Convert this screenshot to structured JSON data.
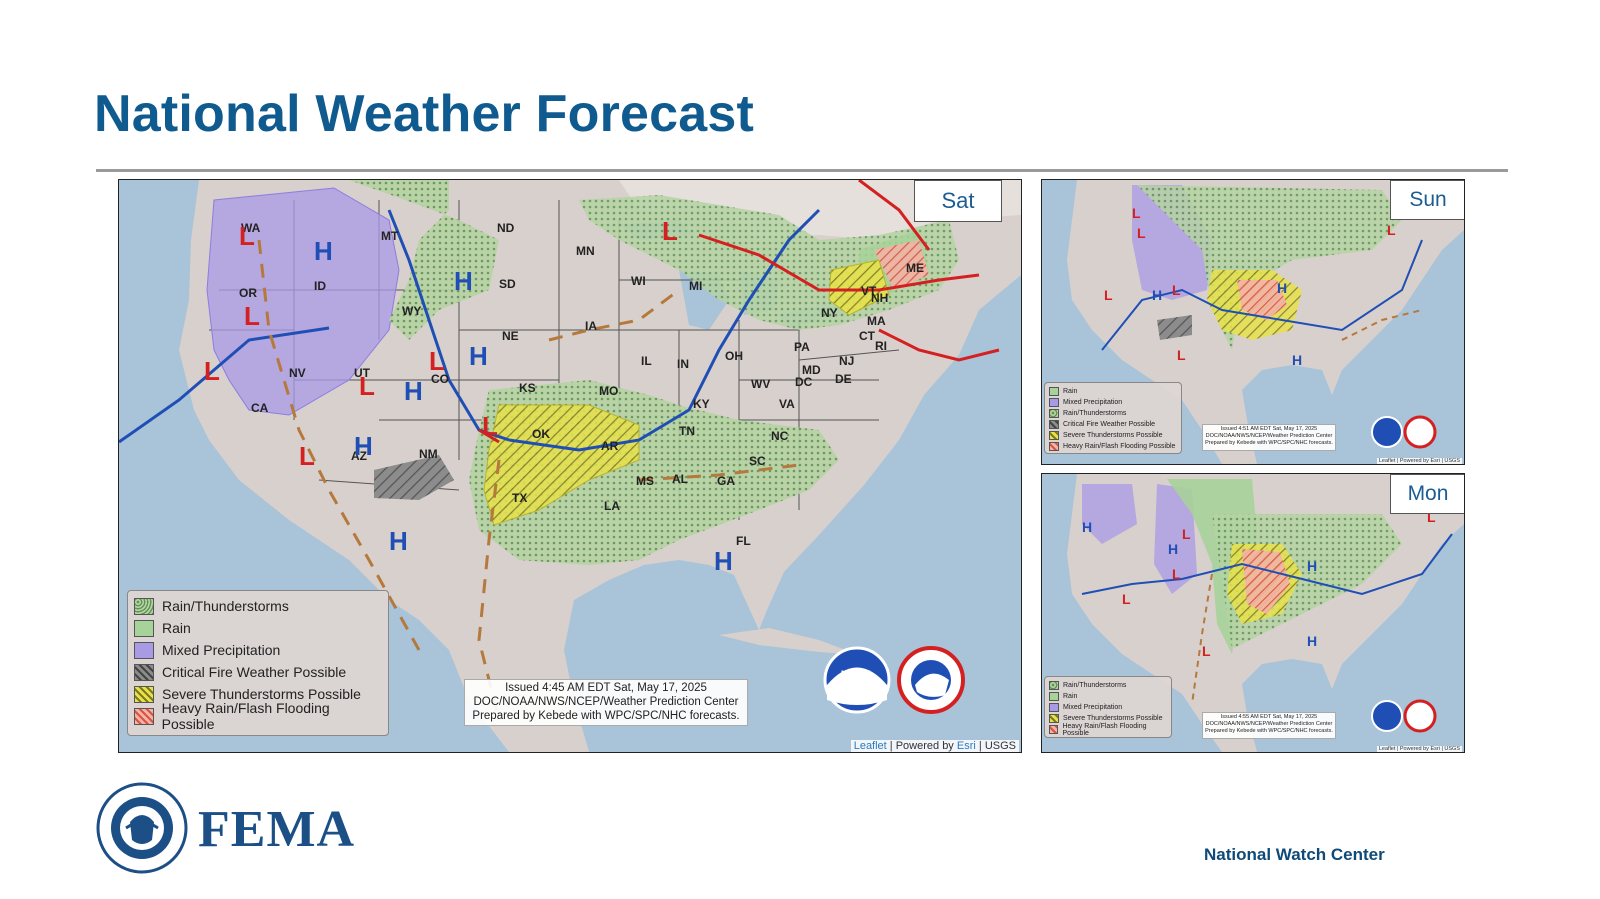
{
  "page": {
    "title": "National Weather Forecast",
    "footer": "National Watch Center",
    "logo_text": "FEMA"
  },
  "seal_text": "U.S. DEPARTMENT OF HOMELAND SECURITY",
  "colors": {
    "title": "#0f5a8e",
    "rain_thunder": "#9fc38a",
    "rain": "#a7d29a",
    "mixed": "#a99ae6",
    "fire": "#7a7a7a",
    "severe": "#e8e24a",
    "flood": "#d9533f",
    "high": "#1f4fb5",
    "low": "#d42020"
  },
  "main_map": {
    "day": "Sat",
    "legend": [
      {
        "label": "Rain/Thunderstorms",
        "key": "rain_thunder"
      },
      {
        "label": "Rain",
        "key": "rain"
      },
      {
        "label": "Mixed Precipitation",
        "key": "mixed"
      },
      {
        "label": "Critical Fire Weather Possible",
        "key": "fire"
      },
      {
        "label": "Severe Thunderstorms Possible",
        "key": "severe"
      },
      {
        "label": "Heavy Rain/Flash Flooding Possible",
        "key": "flood"
      }
    ],
    "issued": [
      "Issued  4:45 AM EDT  Sat, May 17, 2025",
      "DOC/NOAA/NWS/NCEP/Weather Prediction Center",
      "Prepared by Kebede with WPC/SPC/NHC forecasts."
    ],
    "credit": {
      "leaflet": "Leaflet",
      "powered": "Powered by",
      "esri": "Esri",
      "usgs": "USGS"
    },
    "states": [
      "WA",
      "OR",
      "ID",
      "MT",
      "NV",
      "CA",
      "UT",
      "WY",
      "CO",
      "AZ",
      "NM",
      "ND",
      "SD",
      "NE",
      "KS",
      "OK",
      "TX",
      "MN",
      "IA",
      "MO",
      "AR",
      "LA",
      "WI",
      "IL",
      "MI",
      "IN",
      "OH",
      "KY",
      "TN",
      "MS",
      "AL",
      "GA",
      "FL",
      "SC",
      "NC",
      "VA",
      "WV",
      "PA",
      "NY",
      "MD",
      "DC",
      "DE",
      "NJ",
      "CT",
      "RI",
      "MA",
      "VT",
      "NH",
      "ME"
    ],
    "logos": {
      "noaa": "NOAA",
      "nws": "NATIONAL WEATHER SERVICE"
    }
  },
  "sun_map": {
    "day": "Sun",
    "legend": [
      "Rain",
      "Mixed Precipitation",
      "Rain/Thunderstorms",
      "Critical Fire Weather Possible",
      "Severe Thunderstorms Possible",
      "Heavy Rain/Flash Flooding Possible"
    ],
    "issued": [
      "Issued  4:51 AM EDT Sat, May 17, 2025",
      "DOC/NOAA/NWS/NCEP/Weather Prediction Center",
      "Prepared by Kebede with WPC/SPC/NHC forecasts."
    ],
    "credit": "Leaflet | Powered by Esri | USGS"
  },
  "mon_map": {
    "day": "Mon",
    "legend": [
      "Rain/Thunderstorms",
      "Rain",
      "Mixed Precipitation",
      "Severe Thunderstorms Possible",
      "Heavy Rain/Flash Flooding Possible"
    ],
    "issued": [
      "Issued  4:55 AM EDT Sat, May 17, 2025",
      "DOC/NOAA/NWS/NCEP/Weather Prediction Center",
      "Prepared by Kebede with WPC/SPC/NHC forecasts."
    ],
    "credit": "Leaflet | Powered by Esri | USGS"
  }
}
